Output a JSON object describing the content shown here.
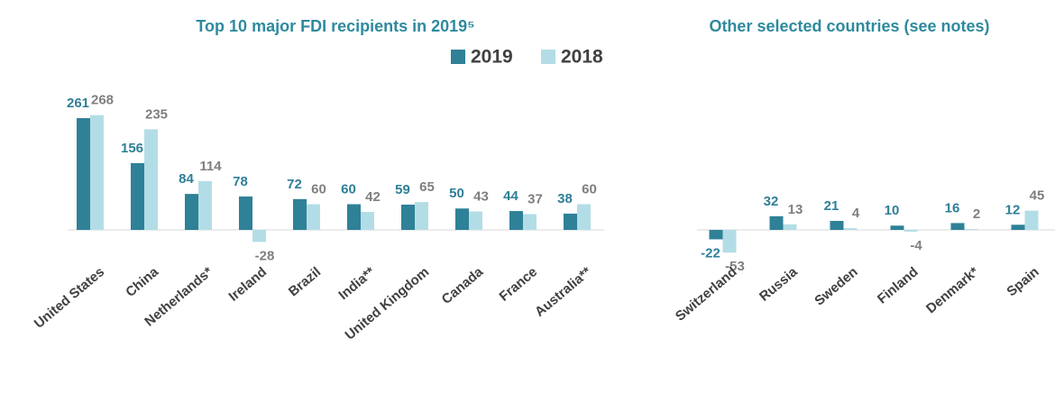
{
  "chart_data": [
    {
      "type": "bar",
      "title": "Top 10 major FDI recipients in 2019⁵",
      "categories": [
        "United States",
        "China",
        "Netherlands*",
        "Ireland",
        "Brazil",
        "India**",
        "United Kingdom",
        "Canada",
        "France",
        "Australia**"
      ],
      "series": [
        {
          "name": "2019",
          "color": "#2e8197",
          "values": [
            261,
            156,
            84,
            78,
            72,
            60,
            59,
            50,
            44,
            38
          ]
        },
        {
          "name": "2018",
          "color": "#b3dde6",
          "values": [
            268,
            235,
            114,
            -28,
            60,
            42,
            65,
            43,
            37,
            60
          ]
        }
      ],
      "legend": "top-right"
    },
    {
      "type": "bar",
      "title": "Other selected countries (see notes)",
      "categories": [
        "Switzerland",
        "Russia",
        "Sweden",
        "Finland",
        "Denmark*",
        "Spain"
      ],
      "series": [
        {
          "color": "#2e8197",
          "values": [
            -22,
            32,
            21,
            10,
            16,
            12
          ]
        },
        {
          "color": "#b3dde6",
          "values": [
            -53,
            13,
            4,
            -4,
            2,
            45
          ]
        }
      ]
    }
  ]
}
